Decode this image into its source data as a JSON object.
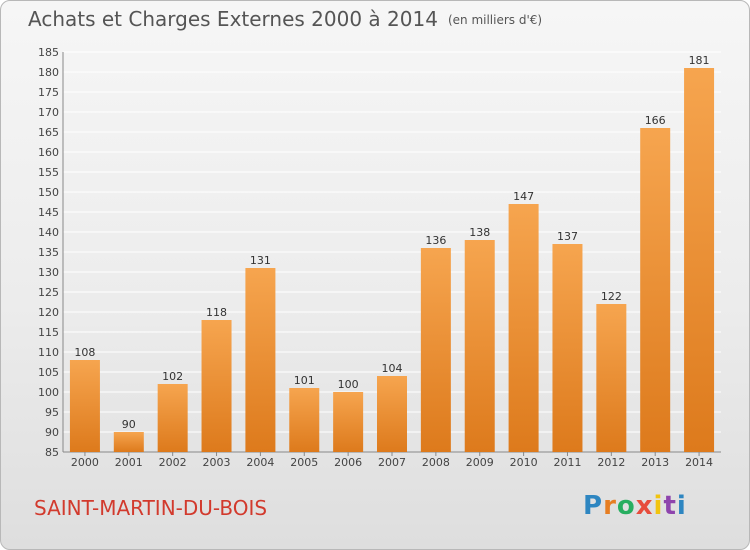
{
  "title": "Achats et Charges Externes 2000 à 2014",
  "unit": "(en milliers d'€)",
  "city": "SAINT-MARTIN-DU-BOIS",
  "logo": {
    "letters": [
      "P",
      "r",
      "o",
      "x",
      "i",
      "t",
      "i"
    ],
    "colors": [
      "#2e86c1",
      "#e67e22",
      "#27ae60",
      "#e74c3c",
      "#f1c40f",
      "#8e44ad",
      "#2e86c1"
    ]
  },
  "colors": {
    "bar_top": "#f6a54f",
    "bar_bottom": "#dd7a1c",
    "grid": "#ffffff",
    "axis": "#888888",
    "title": "#555555",
    "city": "#d23a2d"
  },
  "chart_data": {
    "type": "bar",
    "categories": [
      "2000",
      "2001",
      "2002",
      "2003",
      "2004",
      "2005",
      "2006",
      "2007",
      "2008",
      "2009",
      "2010",
      "2011",
      "2012",
      "2013",
      "2014"
    ],
    "values": [
      108,
      90,
      102,
      118,
      131,
      101,
      100,
      104,
      136,
      138,
      147,
      137,
      122,
      166,
      181
    ],
    "ylim": [
      85,
      185
    ],
    "yticks": [
      85,
      90,
      95,
      100,
      105,
      110,
      115,
      120,
      125,
      130,
      135,
      140,
      145,
      150,
      155,
      160,
      165,
      170,
      175,
      180,
      185
    ],
    "grid": true,
    "xlabel": "",
    "ylabel": ""
  }
}
